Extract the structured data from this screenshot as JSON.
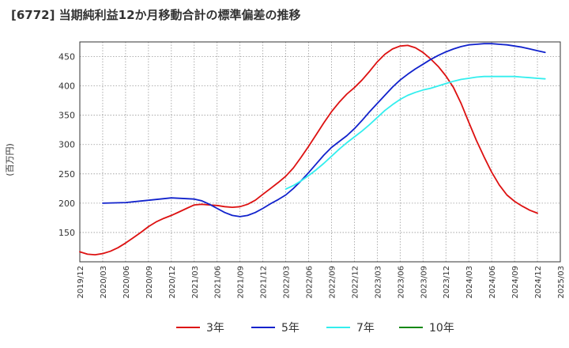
{
  "chart_data": {
    "type": "line",
    "title": "[6772]  当期純利益12か月移動合計の標準偏差の推移",
    "ylabel": "(百万円)",
    "xlabel": "",
    "ylim": [
      100,
      475
    ],
    "yticks": [
      150,
      200,
      250,
      300,
      350,
      400,
      450
    ],
    "xticks": [
      "2019/12",
      "2020/03",
      "2020/06",
      "2020/09",
      "2020/12",
      "2021/03",
      "2021/06",
      "2021/09",
      "2021/12",
      "2022/03",
      "2022/06",
      "2022/09",
      "2022/12",
      "2023/03",
      "2023/06",
      "2023/09",
      "2023/12",
      "2024/03",
      "2024/06",
      "2024/09",
      "2024/12",
      "2025/03"
    ],
    "grid": true,
    "legend_position": "bottom",
    "colors": {
      "3年": "#dd1111",
      "5年": "#1122cc",
      "7年": "#33eeee",
      "10年": "#118811"
    },
    "series": [
      {
        "name": "3年",
        "points": [
          [
            "2019/12",
            117
          ],
          [
            "2020/01",
            113
          ],
          [
            "2020/02",
            112
          ],
          [
            "2020/03",
            114
          ],
          [
            "2020/04",
            118
          ],
          [
            "2020/05",
            124
          ],
          [
            "2020/06",
            132
          ],
          [
            "2020/07",
            141
          ],
          [
            "2020/08",
            150
          ],
          [
            "2020/09",
            160
          ],
          [
            "2020/10",
            168
          ],
          [
            "2020/11",
            174
          ],
          [
            "2020/12",
            179
          ],
          [
            "2021/01",
            185
          ],
          [
            "2021/02",
            191
          ],
          [
            "2021/03",
            197
          ],
          [
            "2021/04",
            198
          ],
          [
            "2021/05",
            197
          ],
          [
            "2021/06",
            196
          ],
          [
            "2021/07",
            194
          ],
          [
            "2021/08",
            193
          ],
          [
            "2021/09",
            194
          ],
          [
            "2021/10",
            198
          ],
          [
            "2021/11",
            205
          ],
          [
            "2021/12",
            215
          ],
          [
            "2022/01",
            225
          ],
          [
            "2022/02",
            235
          ],
          [
            "2022/03",
            246
          ],
          [
            "2022/04",
            260
          ],
          [
            "2022/05",
            278
          ],
          [
            "2022/06",
            297
          ],
          [
            "2022/07",
            317
          ],
          [
            "2022/08",
            337
          ],
          [
            "2022/09",
            356
          ],
          [
            "2022/10",
            372
          ],
          [
            "2022/11",
            386
          ],
          [
            "2022/12",
            397
          ],
          [
            "2023/01",
            410
          ],
          [
            "2023/02",
            425
          ],
          [
            "2023/03",
            441
          ],
          [
            "2023/04",
            454
          ],
          [
            "2023/05",
            463
          ],
          [
            "2023/06",
            468
          ],
          [
            "2023/07",
            469
          ],
          [
            "2023/08",
            465
          ],
          [
            "2023/09",
            457
          ],
          [
            "2023/10",
            446
          ],
          [
            "2023/11",
            433
          ],
          [
            "2023/12",
            417
          ],
          [
            "2024/01",
            397
          ],
          [
            "2024/02",
            370
          ],
          [
            "2024/03",
            338
          ],
          [
            "2024/04",
            307
          ],
          [
            "2024/05",
            279
          ],
          [
            "2024/06",
            253
          ],
          [
            "2024/07",
            231
          ],
          [
            "2024/08",
            214
          ],
          [
            "2024/09",
            203
          ],
          [
            "2024/10",
            195
          ],
          [
            "2024/11",
            188
          ],
          [
            "2024/12",
            183
          ]
        ]
      },
      {
        "name": "5年",
        "points": [
          [
            "2020/03",
            200
          ],
          [
            "2020/06",
            201
          ],
          [
            "2020/09",
            205
          ],
          [
            "2020/12",
            209
          ],
          [
            "2021/03",
            207
          ],
          [
            "2021/04",
            204
          ],
          [
            "2021/05",
            198
          ],
          [
            "2021/06",
            191
          ],
          [
            "2021/07",
            184
          ],
          [
            "2021/08",
            179
          ],
          [
            "2021/09",
            177
          ],
          [
            "2021/10",
            179
          ],
          [
            "2021/11",
            184
          ],
          [
            "2021/12",
            191
          ],
          [
            "2022/01",
            199
          ],
          [
            "2022/02",
            206
          ],
          [
            "2022/03",
            214
          ],
          [
            "2022/04",
            225
          ],
          [
            "2022/05",
            238
          ],
          [
            "2022/06",
            252
          ],
          [
            "2022/07",
            267
          ],
          [
            "2022/08",
            282
          ],
          [
            "2022/09",
            295
          ],
          [
            "2022/10",
            305
          ],
          [
            "2022/11",
            315
          ],
          [
            "2022/12",
            327
          ],
          [
            "2023/01",
            341
          ],
          [
            "2023/02",
            356
          ],
          [
            "2023/03",
            370
          ],
          [
            "2023/04",
            384
          ],
          [
            "2023/05",
            398
          ],
          [
            "2023/06",
            410
          ],
          [
            "2023/07",
            420
          ],
          [
            "2023/08",
            429
          ],
          [
            "2023/09",
            437
          ],
          [
            "2023/10",
            445
          ],
          [
            "2023/11",
            452
          ],
          [
            "2023/12",
            458
          ],
          [
            "2024/01",
            463
          ],
          [
            "2024/02",
            467
          ],
          [
            "2024/03",
            470
          ],
          [
            "2024/04",
            471
          ],
          [
            "2024/05",
            472
          ],
          [
            "2024/06",
            472
          ],
          [
            "2024/07",
            471
          ],
          [
            "2024/08",
            470
          ],
          [
            "2024/09",
            468
          ],
          [
            "2024/10",
            466
          ],
          [
            "2024/11",
            463
          ],
          [
            "2024/12",
            460
          ],
          [
            "2025/01",
            457
          ]
        ]
      },
      {
        "name": "7年",
        "points": [
          [
            "2022/03",
            224
          ],
          [
            "2022/04",
            230
          ],
          [
            "2022/05",
            238
          ],
          [
            "2022/06",
            247
          ],
          [
            "2022/07",
            257
          ],
          [
            "2022/08",
            268
          ],
          [
            "2022/09",
            280
          ],
          [
            "2022/10",
            292
          ],
          [
            "2022/11",
            303
          ],
          [
            "2022/12",
            313
          ],
          [
            "2023/01",
            323
          ],
          [
            "2023/02",
            334
          ],
          [
            "2023/03",
            346
          ],
          [
            "2023/04",
            358
          ],
          [
            "2023/05",
            368
          ],
          [
            "2023/06",
            377
          ],
          [
            "2023/07",
            384
          ],
          [
            "2023/08",
            389
          ],
          [
            "2023/09",
            393
          ],
          [
            "2023/10",
            396
          ],
          [
            "2023/11",
            400
          ],
          [
            "2023/12",
            404
          ],
          [
            "2024/01",
            408
          ],
          [
            "2024/02",
            411
          ],
          [
            "2024/03",
            413
          ],
          [
            "2024/04",
            415
          ],
          [
            "2024/05",
            416
          ],
          [
            "2024/06",
            416
          ],
          [
            "2024/07",
            416
          ],
          [
            "2024/08",
            416
          ],
          [
            "2024/09",
            416
          ],
          [
            "2024/10",
            415
          ],
          [
            "2024/11",
            414
          ],
          [
            "2024/12",
            413
          ],
          [
            "2025/01",
            412
          ]
        ]
      },
      {
        "name": "10年",
        "points": []
      }
    ]
  }
}
